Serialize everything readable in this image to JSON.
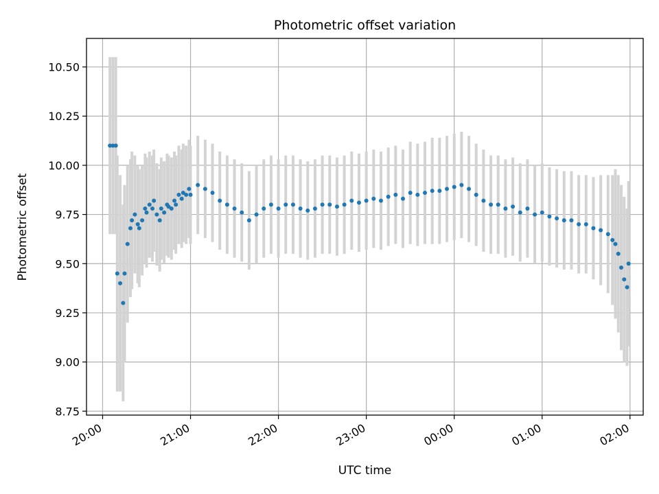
{
  "chart_data": {
    "type": "scatter",
    "title": "Photometric offset variation",
    "xlabel": "UTC time",
    "ylabel": "Photometric offset",
    "grid": true,
    "ylim": [
      8.73,
      10.645
    ],
    "xlim": [
      "19:49",
      "02:09"
    ],
    "y_ticks": [
      8.75,
      9.0,
      9.25,
      9.5,
      9.75,
      10.0,
      10.25,
      10.5
    ],
    "y_tick_labels": [
      "8.75",
      "9.00",
      "9.25",
      "9.50",
      "9.75",
      "10.00",
      "10.25",
      "10.50"
    ],
    "x_ticks": [
      "20:00",
      "21:00",
      "22:00",
      "23:00",
      "00:00",
      "01:00",
      "02:00"
    ],
    "x_tick_labels": [
      "20:00",
      "21:00",
      "22:00",
      "23:00",
      "00:00",
      "01:00",
      "02:00"
    ],
    "colors": {
      "points": "#1f77b4",
      "errorbars": "#d3d3d3"
    },
    "series": [
      {
        "x": [
          "20:05",
          "20:07",
          "20:09",
          "20:10",
          "20:12",
          "20:14",
          "20:15",
          "20:17",
          "20:19",
          "20:20",
          "20:22",
          "20:24",
          "20:25",
          "20:27",
          "20:29",
          "20:30",
          "20:32",
          "20:34",
          "20:35",
          "20:37",
          "20:39",
          "20:40",
          "20:42",
          "20:44",
          "20:45",
          "20:47",
          "20:49",
          "20:50",
          "20:52",
          "20:54",
          "20:55",
          "20:57",
          "20:59",
          "21:00",
          "21:05",
          "21:10",
          "21:15",
          "21:20",
          "21:25",
          "21:30",
          "21:35",
          "21:40",
          "21:45",
          "21:50",
          "21:55",
          "22:00",
          "22:05",
          "22:10",
          "22:15",
          "22:20",
          "22:25",
          "22:30",
          "22:35",
          "22:40",
          "22:45",
          "22:50",
          "22:55",
          "23:00",
          "23:05",
          "23:10",
          "23:15",
          "23:20",
          "23:25",
          "23:30",
          "23:35",
          "23:40",
          "23:45",
          "23:50",
          "23:55",
          "00:00",
          "00:05",
          "00:10",
          "00:15",
          "00:20",
          "00:25",
          "00:30",
          "00:35",
          "00:40",
          "00:45",
          "00:50",
          "00:55",
          "01:00",
          "01:05",
          "01:10",
          "01:15",
          "01:20",
          "01:25",
          "01:30",
          "01:35",
          "01:40",
          "01:45",
          "01:48",
          "01:50",
          "01:52",
          "01:54",
          "01:56",
          "01:58",
          "01:59"
        ],
        "y": [
          10.1,
          10.1,
          10.1,
          9.45,
          9.4,
          9.3,
          9.45,
          9.6,
          9.68,
          9.72,
          9.75,
          9.7,
          9.68,
          9.72,
          9.78,
          9.76,
          9.8,
          9.78,
          9.82,
          9.75,
          9.72,
          9.78,
          9.76,
          9.8,
          9.79,
          9.78,
          9.82,
          9.8,
          9.85,
          9.83,
          9.86,
          9.85,
          9.88,
          9.85,
          9.9,
          9.88,
          9.86,
          9.82,
          9.8,
          9.78,
          9.76,
          9.72,
          9.75,
          9.78,
          9.8,
          9.78,
          9.8,
          9.8,
          9.78,
          9.77,
          9.78,
          9.8,
          9.8,
          9.79,
          9.8,
          9.82,
          9.81,
          9.82,
          9.83,
          9.82,
          9.84,
          9.85,
          9.83,
          9.86,
          9.85,
          9.86,
          9.87,
          9.87,
          9.88,
          9.89,
          9.9,
          9.88,
          9.85,
          9.82,
          9.8,
          9.8,
          9.78,
          9.79,
          9.76,
          9.78,
          9.75,
          9.76,
          9.74,
          9.73,
          9.72,
          9.72,
          9.7,
          9.7,
          9.68,
          9.67,
          9.65,
          9.62,
          9.6,
          9.55,
          9.48,
          9.42,
          9.38,
          9.5
        ],
        "yerr": [
          0.45,
          0.45,
          0.45,
          0.6,
          0.55,
          0.5,
          0.45,
          0.4,
          0.35,
          0.35,
          0.3,
          0.3,
          0.3,
          0.28,
          0.28,
          0.28,
          0.27,
          0.27,
          0.26,
          0.26,
          0.26,
          0.26,
          0.26,
          0.26,
          0.26,
          0.26,
          0.25,
          0.25,
          0.25,
          0.25,
          0.25,
          0.25,
          0.25,
          0.25,
          0.25,
          0.25,
          0.25,
          0.25,
          0.25,
          0.25,
          0.25,
          0.25,
          0.25,
          0.25,
          0.25,
          0.25,
          0.25,
          0.25,
          0.25,
          0.25,
          0.25,
          0.25,
          0.25,
          0.25,
          0.25,
          0.25,
          0.25,
          0.25,
          0.25,
          0.25,
          0.25,
          0.25,
          0.25,
          0.26,
          0.26,
          0.26,
          0.27,
          0.27,
          0.27,
          0.27,
          0.27,
          0.27,
          0.26,
          0.26,
          0.25,
          0.25,
          0.25,
          0.25,
          0.25,
          0.25,
          0.25,
          0.25,
          0.25,
          0.25,
          0.25,
          0.25,
          0.25,
          0.25,
          0.26,
          0.28,
          0.3,
          0.33,
          0.38,
          0.4,
          0.42,
          0.42,
          0.4,
          0.42
        ]
      }
    ]
  }
}
